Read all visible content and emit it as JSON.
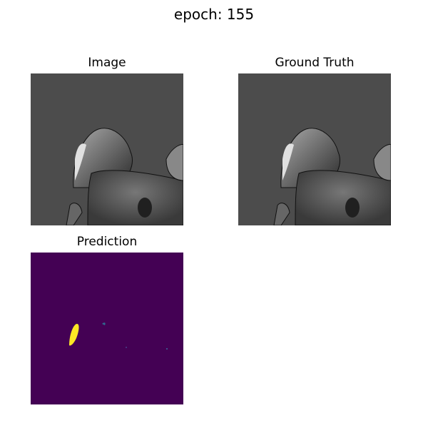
{
  "figure": {
    "suptitle": "epoch: 155"
  },
  "panels": [
    {
      "title": "Image",
      "colormap": "gray",
      "background": "#4c4c4c"
    },
    {
      "title": "Ground Truth",
      "colormap": "gray",
      "background": "#4c4c4c"
    },
    {
      "title": "Prediction",
      "colormap": "viridis",
      "background": "#440154",
      "highlight": "#fde725"
    }
  ]
}
